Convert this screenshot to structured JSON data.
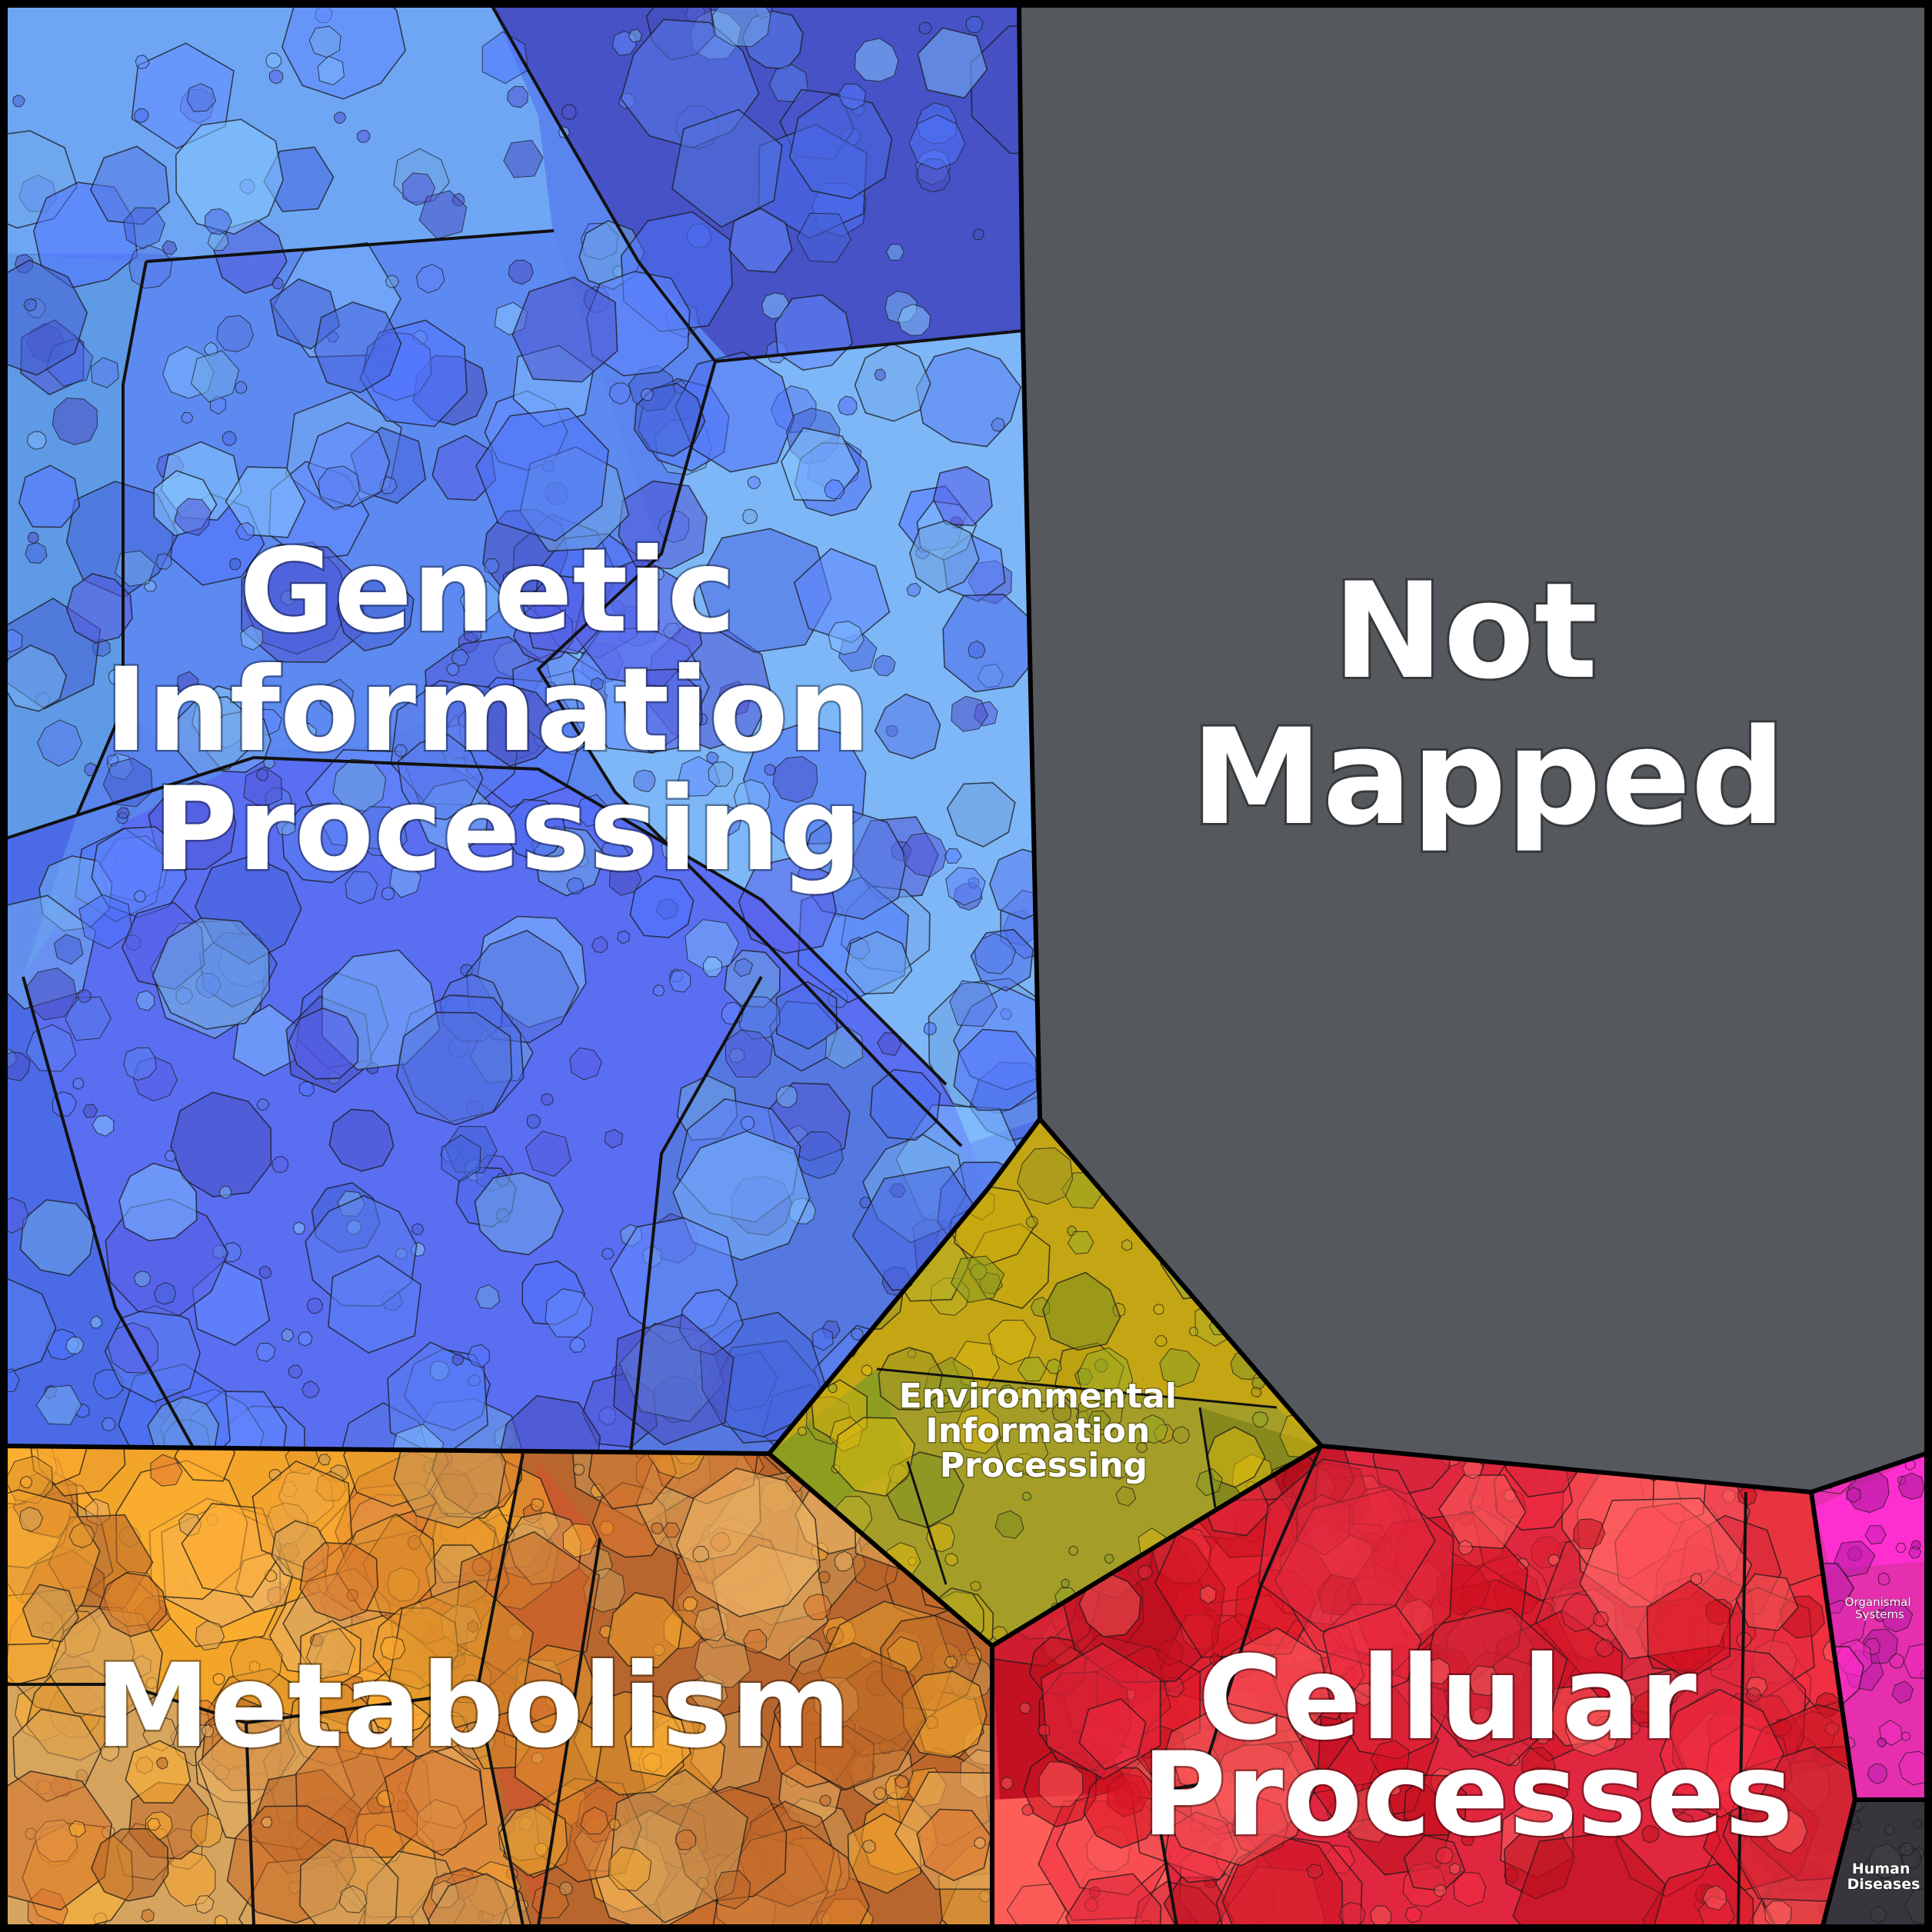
{
  "categories": [
    {
      "key": "genetic",
      "lines": [
        "Genetic",
        "Information",
        "Processing"
      ],
      "colors": [
        "#5b7ff2",
        "#4a6ae8",
        "#79b3f7",
        "#4e55d0"
      ]
    },
    {
      "key": "not_mapped",
      "lines": [
        "Not",
        "Mapped"
      ],
      "colors": [
        "#55595e"
      ]
    },
    {
      "key": "environmental",
      "lines": [
        "Environmental",
        "Information",
        "Processing"
      ],
      "colors": [
        "#c9a90f",
        "#a59d22",
        "#8a9b21"
      ]
    },
    {
      "key": "metabolism",
      "lines": [
        "Metabolism"
      ],
      "colors": [
        "#f0a02e",
        "#c86b2a",
        "#d9a45c"
      ]
    },
    {
      "key": "cellular",
      "lines": [
        "Cellular",
        "Processes"
      ],
      "colors": [
        "#e0283c",
        "#c4101e",
        "#ff5a5a"
      ]
    },
    {
      "key": "organismal",
      "lines": [
        "Organismal",
        "Systems"
      ],
      "colors": [
        "#e82ab8",
        "#b31ba3"
      ]
    },
    {
      "key": "human_diseases",
      "lines": [
        "Human",
        "Diseases"
      ],
      "colors": [
        "#3a3a3e"
      ]
    }
  ]
}
